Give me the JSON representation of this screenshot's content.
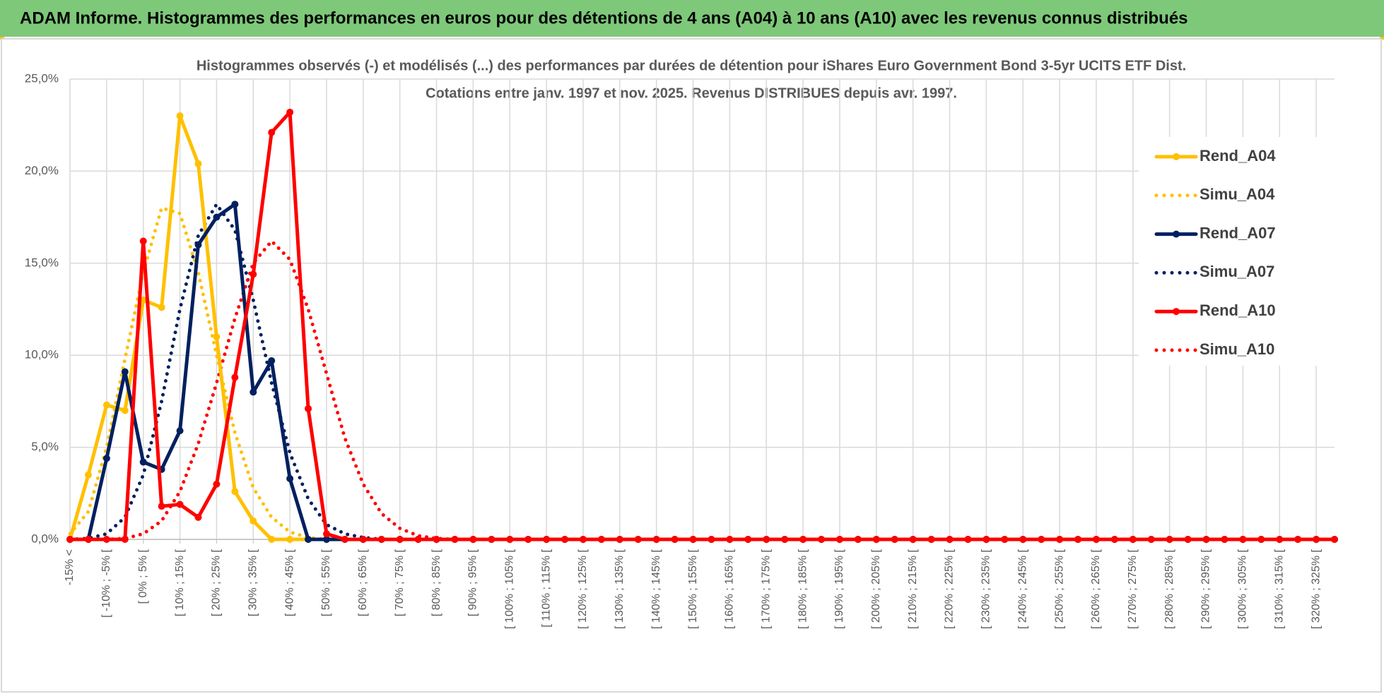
{
  "header": {
    "title": "ADAM Informe. Histogrammes des performances en euros pour des détentions de 4 ans (A04) à 10 ans (A10) avec les revenus connus distribués"
  },
  "chart_data": {
    "type": "line",
    "title": "Histogrammes observés (-) et modélisés (...) des performances par durées de détention pour iShares Euro Government Bond 3-5yr UCITS ETF Dist.",
    "subtitle": "Cotations entre janv. 1997 et nov. 2025. Revenus DISTRIBUES depuis avr. 1997.",
    "categories": [
      "-15% <",
      null,
      "[ -10% ; -5% [",
      null,
      "[ 0% ; 5% [",
      null,
      "[ 10% ; 15% [",
      null,
      "[ 20% ; 25% [",
      null,
      "[ 30% ; 35% [",
      null,
      "[ 40% ; 45% [",
      null,
      "[ 50% ; 55% [",
      null,
      "[ 60% ; 65% [",
      null,
      "[ 70% ; 75% [",
      null,
      "[ 80% ; 85% [",
      null,
      "[ 90% ; 95% [",
      null,
      "[ 100% ; 105% [",
      null,
      "[ 110% ; 115% [",
      null,
      "[ 120% ; 125% [",
      null,
      "[ 130% ; 135% [",
      null,
      "[ 140% ; 145% [",
      null,
      "[ 150% ; 155% [",
      null,
      "[ 160% ; 165% [",
      null,
      "[ 170% ; 175% [",
      null,
      "[ 180% ; 185% [",
      null,
      "[ 190% ; 195% [",
      null,
      "[ 200% ; 205% [",
      null,
      "[ 210% ; 215% [",
      null,
      "[ 220% ; 225% [",
      null,
      "[ 230% ; 235% [",
      null,
      "[ 240% ; 245% [",
      null,
      "[ 250% ; 255% [",
      null,
      "[ 260% ; 265% [",
      null,
      "[ 270% ; 275% [",
      null,
      "[ 280% ; 285% [",
      null,
      "[ 290% ; 295% [",
      null,
      "[ 300% ; 305% [",
      null,
      "[ 310% ; 315% [",
      null,
      "[ 320% ; 325% [",
      null
    ],
    "series": [
      {
        "name": "Rend_A04",
        "color": "#ffc000",
        "line_style": "solid",
        "markers": true,
        "values": [
          0,
          3.5,
          7.3,
          7.0,
          13.0,
          12.6,
          23.0,
          20.4,
          11.0,
          2.6,
          1.0,
          0,
          0,
          0,
          0,
          0,
          0,
          0,
          0,
          0,
          0,
          0,
          0,
          0,
          0,
          0,
          0,
          0,
          0,
          0,
          0,
          0,
          0,
          0,
          0,
          0,
          0,
          0,
          0,
          0,
          0,
          0,
          0,
          0,
          0,
          0,
          0,
          0,
          0,
          0,
          0,
          0,
          0,
          0,
          0,
          0,
          0,
          0,
          0,
          0,
          0,
          0,
          0,
          0,
          0,
          0,
          0,
          0,
          0,
          0
        ]
      },
      {
        "name": "Simu_A04",
        "color": "#ffc000",
        "line_style": "dotted",
        "markers": false,
        "values": [
          0.3,
          1.5,
          5.0,
          9.8,
          14.5,
          18.0,
          17.7,
          14.5,
          10.0,
          5.8,
          2.8,
          1.2,
          0.4,
          0.1,
          0,
          0,
          0,
          0,
          0,
          0,
          0,
          0,
          0,
          0,
          0,
          0,
          0,
          0,
          0,
          0,
          0,
          0,
          0,
          0,
          0,
          0,
          0,
          0,
          0,
          0,
          0,
          0,
          0,
          0,
          0,
          0,
          0,
          0,
          0,
          0,
          0,
          0,
          0,
          0,
          0,
          0,
          0,
          0,
          0,
          0,
          0,
          0,
          0,
          0,
          0,
          0,
          0,
          0,
          0,
          0
        ]
      },
      {
        "name": "Rend_A07",
        "color": "#002060",
        "line_style": "solid",
        "markers": true,
        "values": [
          0,
          0,
          4.4,
          9.1,
          4.2,
          3.8,
          5.9,
          16.0,
          17.5,
          18.2,
          8.0,
          9.7,
          3.3,
          0,
          0,
          0,
          0,
          0,
          0,
          0,
          0,
          0,
          0,
          0,
          0,
          0,
          0,
          0,
          0,
          0,
          0,
          0,
          0,
          0,
          0,
          0,
          0,
          0,
          0,
          0,
          0,
          0,
          0,
          0,
          0,
          0,
          0,
          0,
          0,
          0,
          0,
          0,
          0,
          0,
          0,
          0,
          0,
          0,
          0,
          0,
          0,
          0,
          0,
          0,
          0,
          0,
          0,
          0,
          0,
          0
        ]
      },
      {
        "name": "Simu_A07",
        "color": "#002060",
        "line_style": "dotted",
        "markers": false,
        "values": [
          0,
          0.05,
          0.3,
          1.2,
          3.5,
          7.5,
          12.5,
          16.5,
          18.2,
          16.8,
          13.0,
          8.5,
          4.7,
          2.2,
          0.8,
          0.3,
          0.1,
          0,
          0,
          0,
          0,
          0,
          0,
          0,
          0,
          0,
          0,
          0,
          0,
          0,
          0,
          0,
          0,
          0,
          0,
          0,
          0,
          0,
          0,
          0,
          0,
          0,
          0,
          0,
          0,
          0,
          0,
          0,
          0,
          0,
          0,
          0,
          0,
          0,
          0,
          0,
          0,
          0,
          0,
          0,
          0,
          0,
          0,
          0,
          0,
          0,
          0,
          0,
          0,
          0
        ]
      },
      {
        "name": "Rend_A10",
        "color": "#ff0000",
        "line_style": "solid",
        "markers": true,
        "values": [
          0,
          0,
          0,
          0,
          16.2,
          1.8,
          1.9,
          1.2,
          3.0,
          8.8,
          14.4,
          22.1,
          23.2,
          7.1,
          0.3,
          0,
          0,
          0,
          0,
          0,
          0,
          0,
          0,
          0,
          0,
          0,
          0,
          0,
          0,
          0,
          0,
          0,
          0,
          0,
          0,
          0,
          0,
          0,
          0,
          0,
          0,
          0,
          0,
          0,
          0,
          0,
          0,
          0,
          0,
          0,
          0,
          0,
          0,
          0,
          0,
          0,
          0,
          0,
          0,
          0,
          0,
          0,
          0,
          0,
          0,
          0,
          0,
          0,
          0,
          0
        ]
      },
      {
        "name": "Simu_A10",
        "color": "#ff0000",
        "line_style": "dotted",
        "markers": false,
        "values": [
          0,
          0,
          0,
          0.05,
          0.3,
          1.0,
          2.6,
          5.2,
          8.5,
          12.0,
          15.0,
          16.2,
          15.2,
          12.5,
          9.0,
          5.5,
          3.0,
          1.4,
          0.6,
          0.2,
          0.05,
          0,
          0,
          0,
          0,
          0,
          0,
          0,
          0,
          0,
          0,
          0,
          0,
          0,
          0,
          0,
          0,
          0,
          0,
          0,
          0,
          0,
          0,
          0,
          0,
          0,
          0,
          0,
          0,
          0,
          0,
          0,
          0,
          0,
          0,
          0,
          0,
          0,
          0,
          0,
          0,
          0,
          0,
          0,
          0,
          0,
          0,
          0,
          0,
          0
        ]
      }
    ],
    "ylim": [
      0,
      25
    ],
    "yticks": [
      {
        "value": 0,
        "label": "0,0%"
      },
      {
        "value": 5,
        "label": "5,0%"
      },
      {
        "value": 10,
        "label": "10,0%"
      },
      {
        "value": 15,
        "label": "15,0%"
      },
      {
        "value": 20,
        "label": "20,0%"
      },
      {
        "value": 25,
        "label": "25,0%"
      }
    ],
    "grid": true,
    "legend": "right"
  }
}
